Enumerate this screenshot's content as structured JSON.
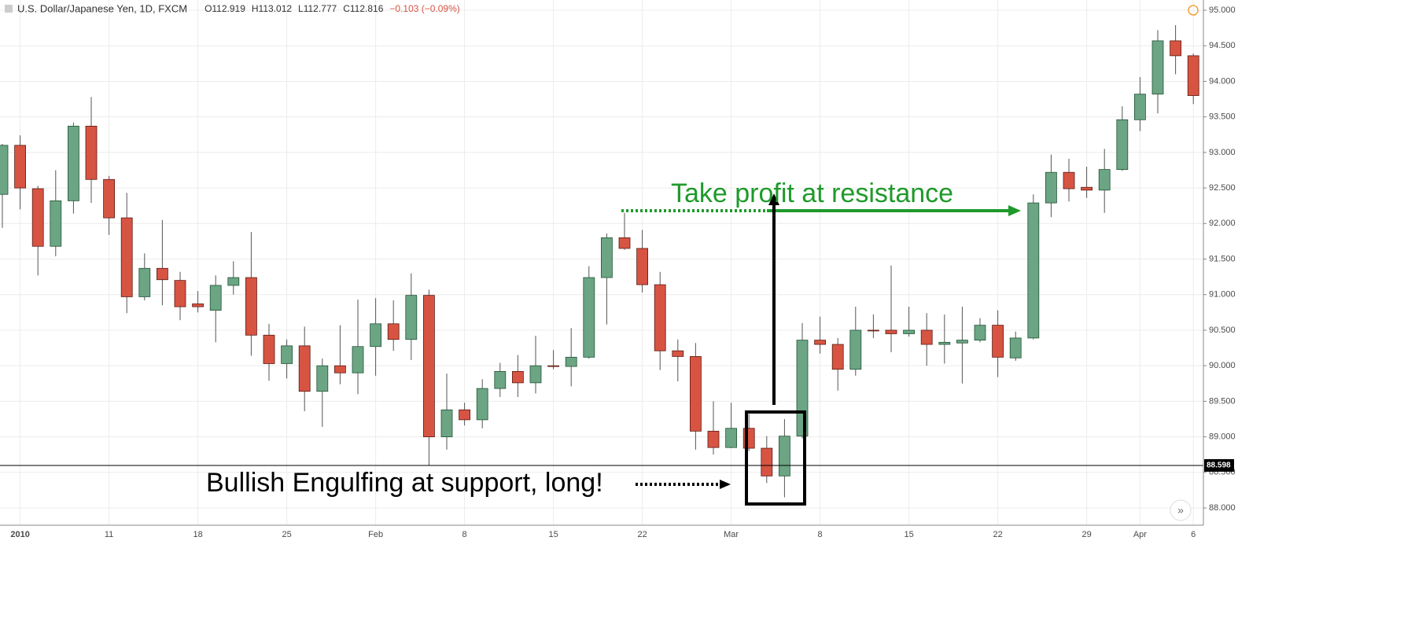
{
  "chart_data": {
    "type": "candlestick",
    "title": "U.S. Dollar/Japanese Yen, 1D, FXCM",
    "ohlc_header": [
      "O112.919",
      "H113.012",
      "L112.777",
      "C112.816",
      "−0.103 (−0.09%)"
    ],
    "categories": [
      null,
      "2010",
      null,
      null,
      null,
      null,
      "11",
      null,
      null,
      null,
      null,
      "18",
      null,
      null,
      null,
      null,
      "25",
      null,
      null,
      null,
      null,
      "Feb",
      null,
      null,
      null,
      null,
      "8",
      null,
      null,
      null,
      null,
      "15",
      null,
      null,
      null,
      null,
      "22",
      null,
      null,
      null,
      null,
      "Mar",
      null,
      null,
      null,
      null,
      "8",
      null,
      null,
      null,
      null,
      "15",
      null,
      null,
      null,
      null,
      "22",
      null,
      null,
      null,
      null,
      "29",
      null,
      null,
      "Apr",
      null,
      null,
      "6"
    ],
    "open": [
      92.41,
      93.1,
      92.49,
      91.68,
      92.32,
      93.37,
      92.62,
      92.08,
      90.97,
      91.37,
      91.2,
      90.87,
      90.78,
      91.13,
      91.24,
      90.43,
      90.03,
      90.28,
      89.64,
      90.0,
      89.9,
      90.27,
      90.59,
      90.37,
      90.99,
      89.0,
      89.38,
      89.24,
      89.68,
      89.92,
      89.76,
      90.0,
      89.99,
      90.12,
      91.24,
      91.8,
      91.65,
      91.14,
      90.21,
      90.13,
      89.08,
      88.85,
      89.12,
      88.84,
      88.45,
      89.01,
      90.36,
      90.3,
      89.95,
      90.5,
      90.5,
      90.45,
      90.5,
      90.3,
      90.32,
      90.36,
      90.57,
      90.11,
      90.39,
      92.29,
      92.72,
      92.51,
      92.47,
      92.76,
      93.46,
      93.82,
      94.57,
      94.36
    ],
    "high": [
      93.12,
      93.24,
      92.53,
      92.75,
      93.42,
      93.78,
      92.67,
      92.43,
      91.58,
      92.05,
      91.32,
      91.05,
      91.27,
      91.47,
      91.88,
      90.59,
      90.37,
      90.55,
      90.1,
      90.57,
      90.93,
      90.95,
      90.92,
      91.3,
      91.07,
      89.89,
      89.48,
      89.81,
      90.04,
      90.15,
      90.42,
      90.22,
      90.53,
      91.4,
      91.86,
      92.15,
      91.91,
      91.32,
      90.37,
      90.32,
      89.5,
      89.48,
      89.32,
      89.01,
      89.25,
      90.6,
      90.69,
      90.39,
      90.83,
      90.72,
      91.41,
      90.83,
      90.74,
      90.72,
      90.83,
      90.67,
      90.78,
      90.48,
      92.41,
      92.97,
      92.91,
      92.8,
      93.05,
      93.65,
      94.06,
      94.72,
      94.79,
      94.39
    ],
    "low": [
      91.94,
      92.2,
      91.27,
      91.54,
      92.14,
      92.29,
      91.84,
      90.74,
      90.92,
      90.85,
      90.64,
      90.75,
      90.33,
      91.0,
      90.14,
      89.79,
      89.82,
      89.36,
      89.14,
      89.74,
      89.6,
      89.86,
      90.21,
      90.08,
      88.6,
      88.82,
      89.16,
      89.12,
      89.56,
      89.56,
      89.61,
      89.95,
      89.71,
      90.1,
      90.58,
      91.63,
      91.03,
      89.94,
      89.78,
      88.82,
      88.75,
      88.84,
      88.8,
      88.35,
      88.15,
      88.98,
      90.17,
      89.65,
      89.86,
      90.39,
      90.19,
      90.41,
      90.0,
      90.03,
      89.75,
      90.33,
      89.84,
      90.07,
      90.37,
      92.09,
      92.31,
      92.36,
      92.15,
      92.74,
      93.3,
      93.55,
      94.1,
      93.68
    ],
    "close": [
      93.1,
      92.5,
      91.68,
      92.32,
      93.37,
      92.62,
      92.08,
      90.97,
      91.37,
      91.21,
      90.83,
      90.83,
      91.13,
      91.24,
      90.43,
      90.03,
      90.28,
      89.64,
      90.0,
      89.9,
      90.27,
      90.59,
      90.37,
      90.99,
      89.0,
      89.38,
      89.24,
      89.68,
      89.92,
      89.76,
      90.0,
      89.99,
      90.12,
      91.24,
      91.8,
      91.65,
      91.14,
      90.21,
      90.13,
      89.08,
      88.85,
      89.12,
      88.84,
      88.45,
      89.01,
      90.36,
      90.3,
      89.95,
      90.5,
      90.49,
      90.45,
      90.5,
      90.3,
      90.33,
      90.36,
      90.57,
      90.12,
      90.39,
      92.29,
      92.72,
      92.49,
      92.47,
      92.76,
      93.46,
      93.82,
      94.57,
      94.36,
      93.8
    ],
    "up_color": "#6ba583",
    "down_color": "#d75442",
    "ylim": [
      87.757,
      95.144
    ],
    "yticks": [
      {
        "value": 88,
        "label": "88.000"
      },
      {
        "value": 88.5,
        "label": "88.500"
      },
      {
        "value": 89,
        "label": "89.000"
      },
      {
        "value": 89.5,
        "label": "89.500"
      },
      {
        "value": 90,
        "label": "90.000"
      },
      {
        "value": 90.5,
        "label": "90.500"
      },
      {
        "value": 91,
        "label": "91.000"
      },
      {
        "value": 91.5,
        "label": "91.500"
      },
      {
        "value": 92,
        "label": "92.000"
      },
      {
        "value": 92.5,
        "label": "92.500"
      },
      {
        "value": 93,
        "label": "93.000"
      },
      {
        "value": 93.5,
        "label": "93.500"
      },
      {
        "value": 94,
        "label": "94.000"
      },
      {
        "value": 94.5,
        "label": "94.500"
      },
      {
        "value": 95,
        "label": "95.000"
      }
    ],
    "last_price": 88.598,
    "grid": true,
    "annotations": [
      "Take profit at resistance",
      "Bullish Engulfing at support, long!"
    ]
  }
}
